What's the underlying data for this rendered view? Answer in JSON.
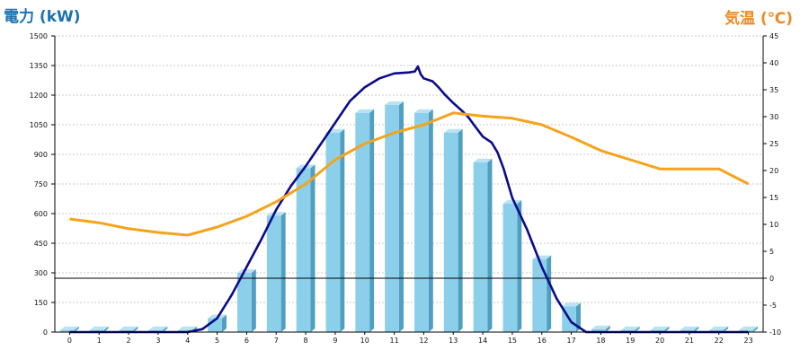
{
  "chart_data": {
    "type": "bar",
    "title_left": "電力 (kW)",
    "title_right": "気温 (℃)",
    "categories": [
      "0",
      "1",
      "2",
      "3",
      "4",
      "5",
      "6",
      "7",
      "8",
      "9",
      "10",
      "11",
      "12",
      "13",
      "14",
      "15",
      "16",
      "17",
      "18",
      "19",
      "20",
      "21",
      "22",
      "23"
    ],
    "y_left": {
      "min": 0,
      "max": 1500,
      "ticks": [
        0,
        150,
        300,
        450,
        600,
        750,
        900,
        1050,
        1200,
        1350,
        1500
      ]
    },
    "y_right": {
      "min": -10,
      "max": 45,
      "ticks": [
        -10,
        -5,
        0,
        5,
        10,
        15,
        20,
        25,
        30,
        35,
        40,
        45
      ]
    },
    "bars": {
      "axis": "left",
      "values": [
        10,
        10,
        10,
        10,
        10,
        70,
        300,
        590,
        830,
        1010,
        1110,
        1150,
        1110,
        1010,
        860,
        650,
        370,
        130,
        15,
        10,
        10,
        10,
        10,
        10
      ]
    },
    "power_line": {
      "axis": "left",
      "x": [
        0,
        1,
        2,
        3,
        4,
        4.5,
        5,
        5.5,
        6,
        6.5,
        7,
        7.5,
        8,
        8.5,
        9,
        9.5,
        10,
        10.5,
        11,
        11.5,
        11.7,
        11.8,
        11.9,
        12,
        12.3,
        12.5,
        12.7,
        13,
        13.3,
        13.5,
        13.7,
        14,
        14.3,
        14.5,
        14.7,
        15,
        15.5,
        16,
        16.5,
        17,
        17.5,
        18,
        19,
        20,
        21,
        22,
        23
      ],
      "y": [
        0,
        0,
        0,
        0,
        0,
        15,
        70,
        190,
        330,
        470,
        620,
        740,
        840,
        950,
        1060,
        1170,
        1240,
        1285,
        1310,
        1315,
        1320,
        1345,
        1305,
        1285,
        1270,
        1240,
        1205,
        1160,
        1120,
        1090,
        1050,
        990,
        960,
        910,
        830,
        680,
        520,
        330,
        170,
        50,
        0,
        0,
        0,
        0,
        0,
        0,
        0
      ]
    },
    "temp_line": {
      "axis": "right",
      "x": [
        0,
        1,
        2,
        3,
        4,
        5,
        6,
        7,
        8,
        9,
        10,
        11,
        12,
        13,
        14,
        15,
        16,
        17,
        18,
        19,
        20,
        21,
        22,
        23
      ],
      "y": [
        11,
        10.3,
        9.2,
        8.5,
        8,
        9.5,
        11.5,
        14.2,
        17.5,
        22,
        25,
        27,
        28.5,
        30.7,
        30.1,
        29.7,
        28.5,
        26.2,
        23.7,
        22,
        20.3,
        20.3,
        20.3,
        17.5
      ]
    },
    "reference_line": {
      "axis": "right",
      "value": 0
    },
    "grid": true,
    "colors": {
      "bar_front": "#8ccfea",
      "bar_side": "#4f9fc1",
      "bar_top": "#b9e2f3",
      "power_line": "#0b0b8a",
      "temp_line": "#f5a31a",
      "title_left": "#1a72b0",
      "title_right": "#ee8a22",
      "grid": "#c9c9c9"
    }
  }
}
